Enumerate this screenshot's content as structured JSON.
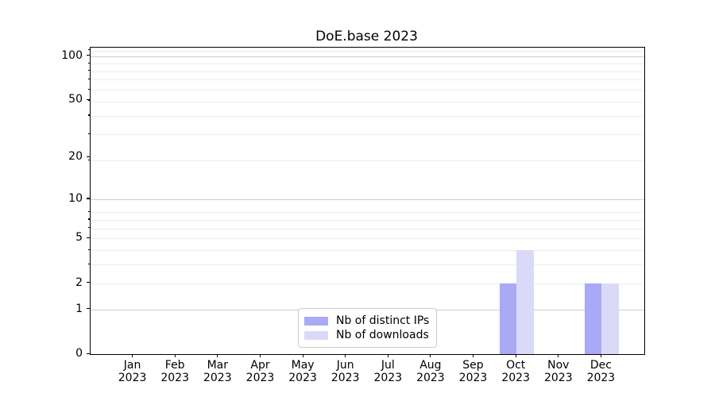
{
  "chart_data": {
    "type": "bar",
    "title": "DoE.base 2023",
    "xlabel": "",
    "ylabel": "",
    "categories": [
      "Jan",
      "Feb",
      "Mar",
      "Apr",
      "May",
      "Jun",
      "Jul",
      "Aug",
      "Sep",
      "Oct",
      "Nov",
      "Dec"
    ],
    "category_year": "2023",
    "series": [
      {
        "name": "Nb of distinct IPs",
        "color": "#a9a9f6",
        "values": [
          0,
          0,
          0,
          0,
          0,
          0,
          0,
          0,
          0,
          2,
          0,
          2
        ]
      },
      {
        "name": "Nb of downloads",
        "color": "#dadaf8",
        "values": [
          0,
          0,
          0,
          0,
          0,
          0,
          0,
          0,
          0,
          4,
          0,
          2
        ]
      }
    ],
    "yscale": "log10(value+1)",
    "y_ticks": [
      0,
      1,
      2,
      5,
      10,
      20,
      50,
      100
    ],
    "y_major_gridlines": [
      1,
      10,
      100
    ],
    "y_minor_gridlines": [
      2,
      3,
      4,
      5,
      6,
      7,
      8,
      19,
      29,
      39,
      49,
      59,
      69,
      79,
      89,
      109
    ],
    "ylim": [
      0,
      115
    ],
    "grid": "horizontal",
    "legend_position": "lower center",
    "colors": {
      "major_grid": "#cccccc",
      "minor_grid": "#ededed",
      "spine": "#000000",
      "text": "#000000"
    }
  }
}
